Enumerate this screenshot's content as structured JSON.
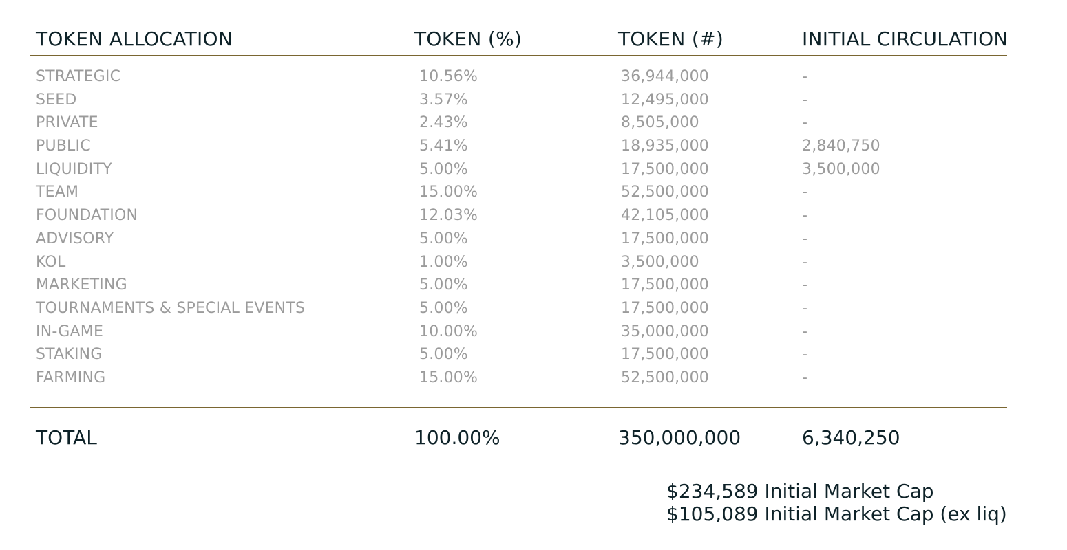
{
  "headers": {
    "allocation": "TOKEN ALLOCATION",
    "percent": "TOKEN (%)",
    "count": "TOKEN (#)",
    "circulation": "INITIAL CIRCULATION"
  },
  "rows": [
    {
      "allocation": "STRATEGIC",
      "percent": "10.56%",
      "count": "36,944,000",
      "circulation": "-"
    },
    {
      "allocation": "SEED",
      "percent": "3.57%",
      "count": "12,495,000",
      "circulation": "-"
    },
    {
      "allocation": "PRIVATE",
      "percent": "2.43%",
      "count": "8,505,000",
      "circulation": "-"
    },
    {
      "allocation": "PUBLIC",
      "percent": "5.41%",
      "count": "18,935,000",
      "circulation": "2,840,750"
    },
    {
      "allocation": "LIQUIDITY",
      "percent": "5.00%",
      "count": "17,500,000",
      "circulation": "3,500,000"
    },
    {
      "allocation": "TEAM",
      "percent": "15.00%",
      "count": "52,500,000",
      "circulation": "-"
    },
    {
      "allocation": "FOUNDATION",
      "percent": "12.03%",
      "count": "42,105,000",
      "circulation": "-"
    },
    {
      "allocation": "ADVISORY",
      "percent": "5.00%",
      "count": "17,500,000",
      "circulation": "-"
    },
    {
      "allocation": "KOL",
      "percent": "1.00%",
      "count": "3,500,000",
      "circulation": "-"
    },
    {
      "allocation": "MARKETING",
      "percent": "5.00%",
      "count": "17,500,000",
      "circulation": "-"
    },
    {
      "allocation": "TOURNAMENTS & SPECIAL EVENTS",
      "percent": "5.00%",
      "count": "17,500,000",
      "circulation": "-"
    },
    {
      "allocation": "IN-GAME",
      "percent": "10.00%",
      "count": "35,000,000",
      "circulation": "-"
    },
    {
      "allocation": "STAKING",
      "percent": "5.00%",
      "count": "17,500,000",
      "circulation": "-"
    },
    {
      "allocation": "FARMING",
      "percent": "15.00%",
      "count": "52,500,000",
      "circulation": "-"
    }
  ],
  "total": {
    "label": "TOTAL",
    "percent": "100.00%",
    "count": "350,000,000",
    "circulation": "6,340,250"
  },
  "market_cap": {
    "initial": "$234,589 Initial Market Cap",
    "initial_ex_liq": "$105,089 Initial Market Cap (ex liq)"
  },
  "colors": {
    "heading_text": "#0e2228",
    "row_text": "#9b9b9b",
    "divider": "#7a6632"
  }
}
